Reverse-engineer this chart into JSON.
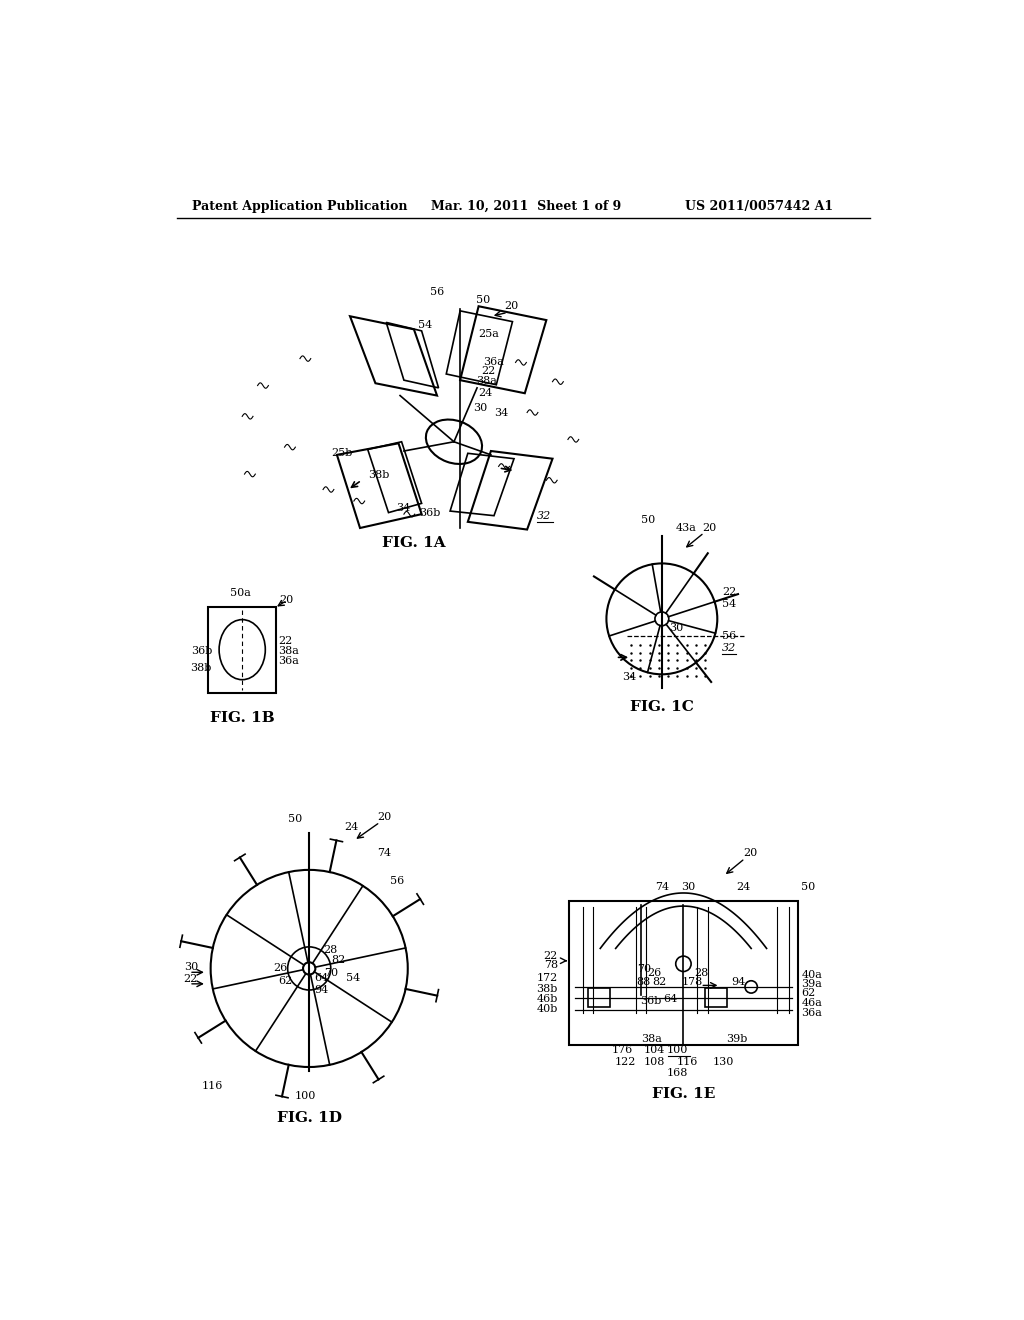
{
  "background_color": "#ffffff",
  "header_left": "Patent Application Publication",
  "header_mid": "Mar. 10, 2011  Sheet 1 of 9",
  "header_right": "US 2011/0057442 A1"
}
